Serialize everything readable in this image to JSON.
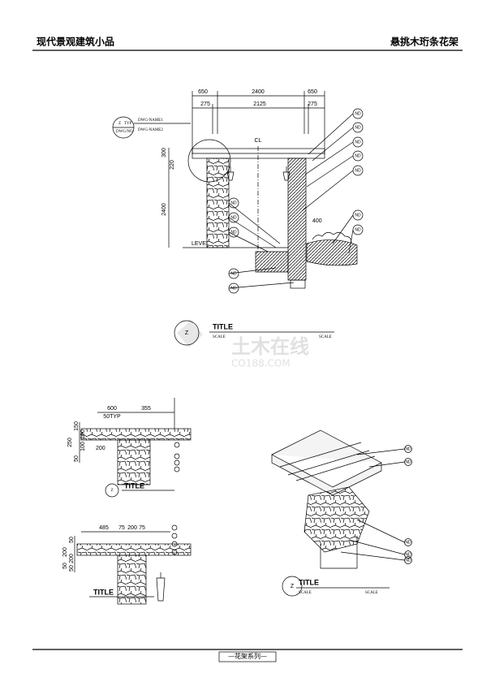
{
  "header": {
    "left": "现代景观建筑小品",
    "right": "悬挑木珩条花架"
  },
  "footer": "—花架系列—",
  "watermark": {
    "main": "土木在线",
    "sub": "CO188.COM"
  },
  "elevation": {
    "dims_top": [
      "650",
      "2400",
      "650"
    ],
    "dims_second": [
      "275",
      "2125",
      "275"
    ],
    "dims_vertical": [
      "300",
      "220",
      "2400"
    ],
    "center_line": "CL",
    "level": "LEVEL",
    "depth": "400",
    "tag": {
      "z": "Z",
      "typ": "TYP",
      "dwg": "DWG/NO",
      "name1": "DWG-NAME1",
      "name2": "DWG-NAME2"
    },
    "callouts": [
      "ND",
      "ND",
      "ND",
      "ND",
      "ND",
      "ND",
      "ND",
      "ND",
      "ND",
      "ND",
      "ND",
      "ND"
    ],
    "title": {
      "z": "Z",
      "title": "TITLE",
      "scale_left": "SCALE",
      "scale_right": "SCALE"
    }
  },
  "detail_a": {
    "dims": [
      "600",
      "355",
      "50TYP",
      "150",
      "100",
      "250",
      "100",
      "50",
      "200"
    ],
    "title": {
      "z": "Z",
      "title": "TITLE"
    }
  },
  "detail_b": {
    "dims": [
      "485",
      "75",
      "200",
      "75",
      "50",
      "200",
      "200",
      "50",
      "50"
    ],
    "title": {
      "title": "TITLE"
    }
  },
  "detail_c": {
    "callouts": [
      "ND",
      "ND",
      "ND",
      "ND",
      "ND"
    ],
    "title": {
      "z": "Z",
      "title": "TITLE",
      "scale_left": "SCALE",
      "scale_right": "SCALE"
    }
  }
}
